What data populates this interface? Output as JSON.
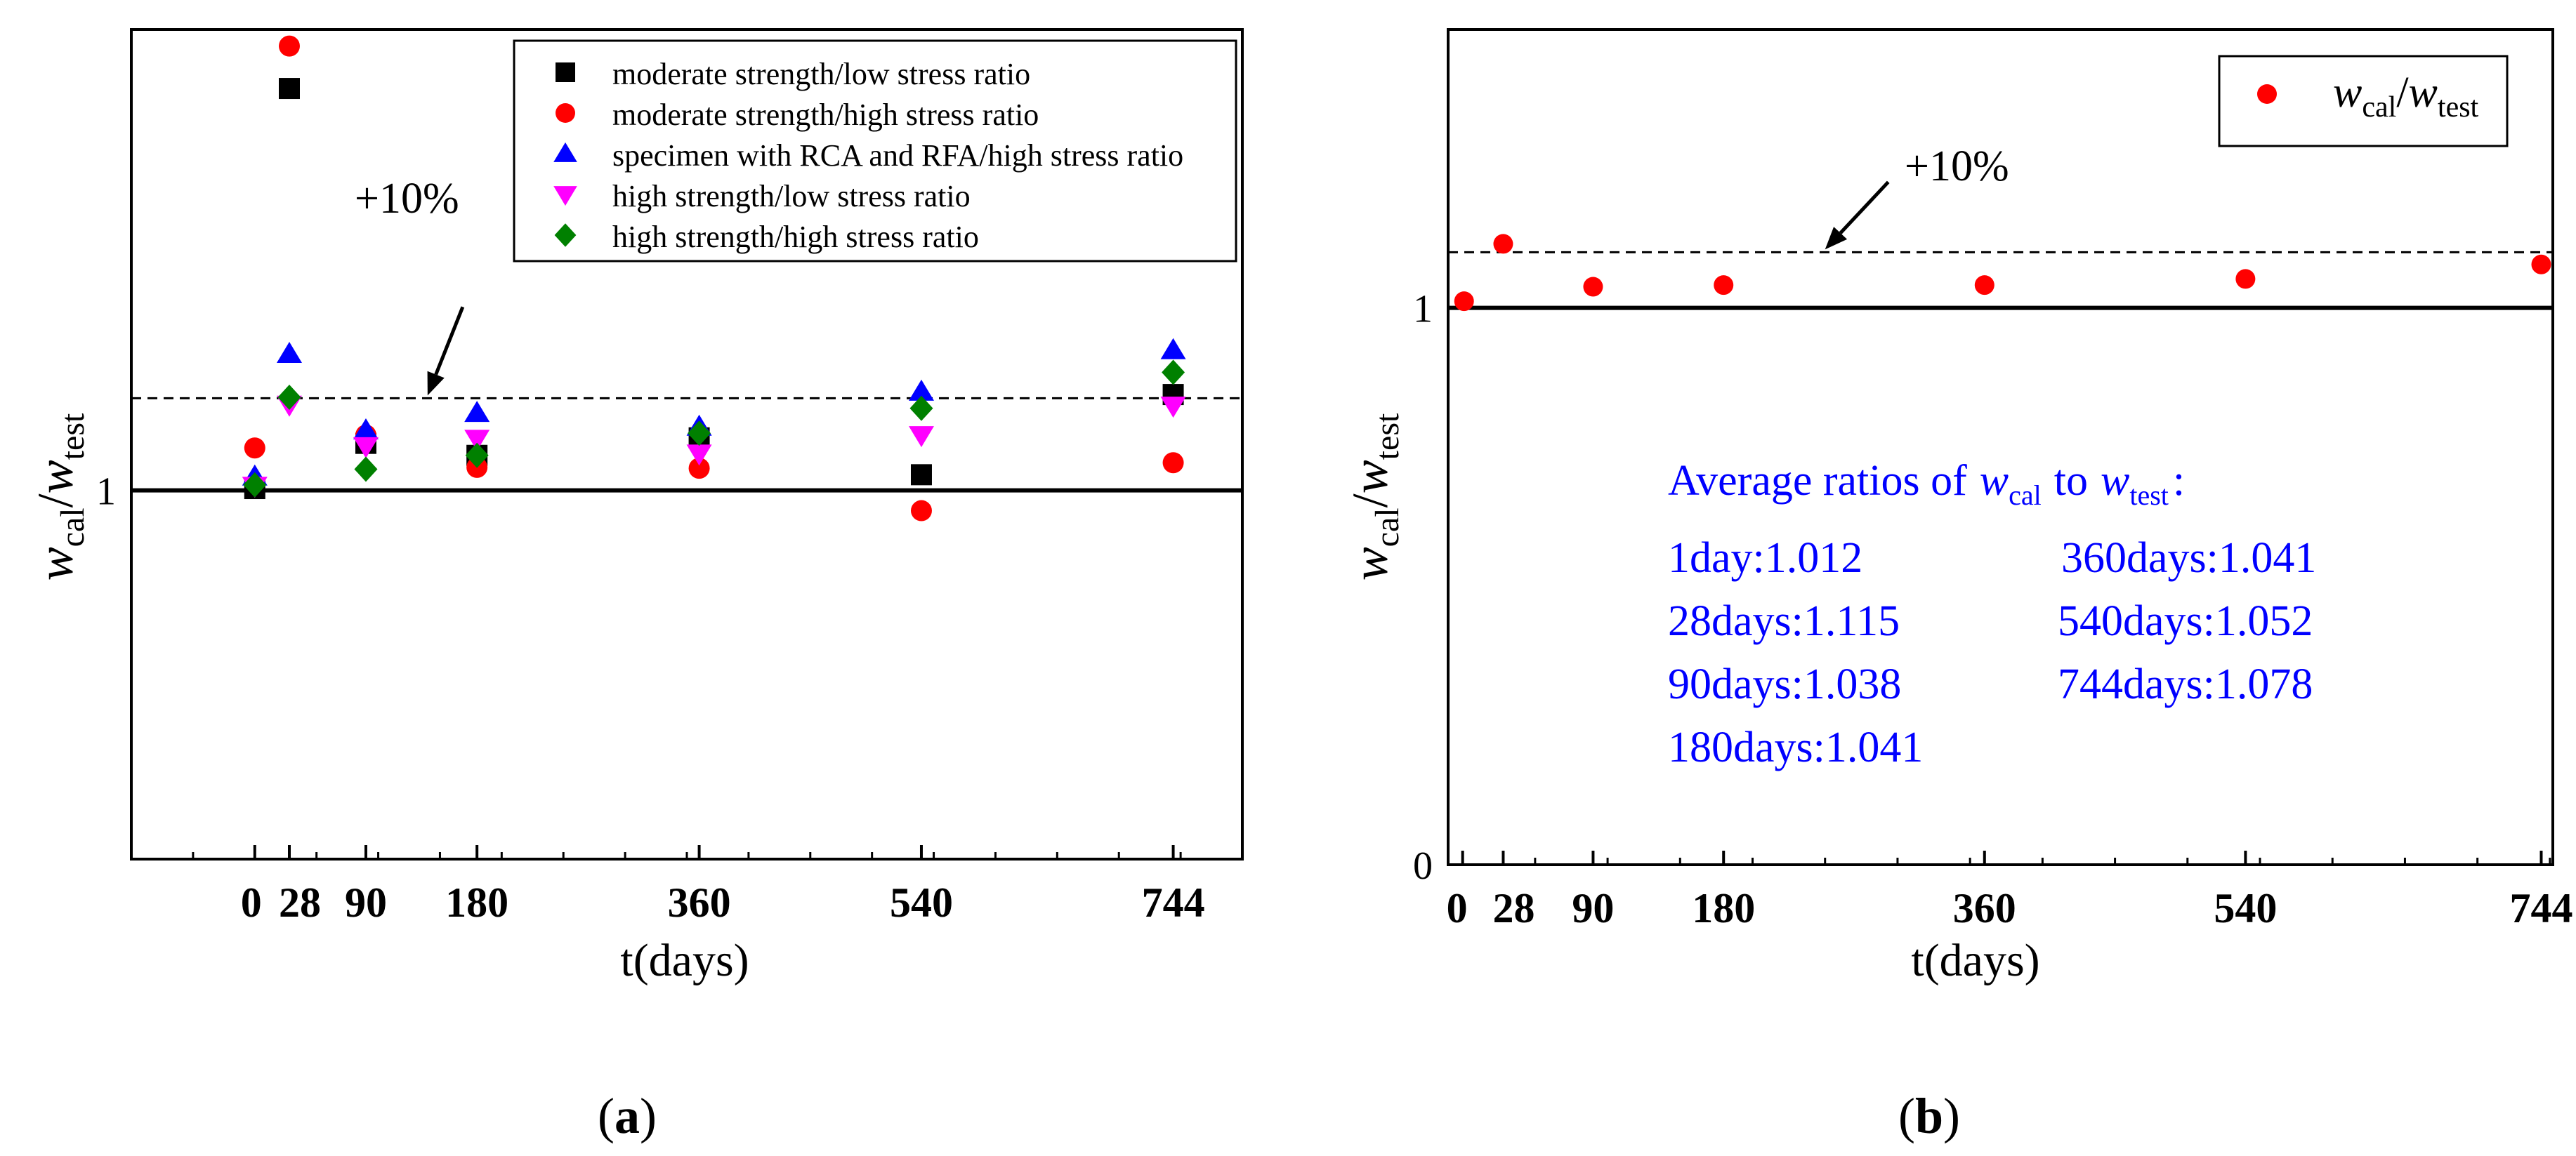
{
  "chart_data": [
    {
      "panel_label": "a",
      "type": "scatter",
      "xlabel": "t(days)",
      "ylabel": {
        "w1": "w",
        "s1": "cal",
        "slash": "/",
        "w2": "w",
        "s2": "test"
      },
      "x_ticks": [
        {
          "value": 0,
          "label": "0"
        },
        {
          "value": 28,
          "label": "28"
        },
        {
          "value": 90,
          "label": "90"
        },
        {
          "value": 180,
          "label": "180"
        },
        {
          "value": 360,
          "label": "360"
        },
        {
          "value": 540,
          "label": "540"
        },
        {
          "value": 744,
          "label": "744"
        }
      ],
      "y_ticks": [
        {
          "value": 1,
          "label": "1"
        }
      ],
      "xlim": [
        -100,
        800
      ],
      "ylim": [
        0.6,
        1.5
      ],
      "reference_lines": [
        {
          "y": 1.0,
          "style": "solid"
        },
        {
          "y": 1.1,
          "style": "dashed"
        }
      ],
      "annotation": {
        "text": "+10%",
        "points_to_x": 140,
        "points_to_y": 1.1
      },
      "legend_position": "top-right",
      "series": [
        {
          "name": "moderate strength/low stress ratio",
          "marker": "square",
          "color": "#000000",
          "x": [
            0,
            28,
            90,
            180,
            360,
            540,
            744
          ],
          "y": [
            1.002,
            1.436,
            1.051,
            1.038,
            1.057,
            1.017,
            1.104
          ]
        },
        {
          "name": "moderate strength/high stress ratio",
          "marker": "circle",
          "color": "#ff0000",
          "x": [
            0,
            28,
            90,
            180,
            360,
            540,
            744
          ],
          "y": [
            1.046,
            1.482,
            1.06,
            1.025,
            1.024,
            0.978,
            1.03
          ]
        },
        {
          "name": "specimen with RCA and RFA/high stress ratio",
          "marker": "triangle-up",
          "color": "#0000ff",
          "x": [
            0,
            28,
            90,
            180,
            360,
            540,
            744
          ],
          "y": [
            1.015,
            1.148,
            1.065,
            1.084,
            1.069,
            1.107,
            1.152
          ]
        },
        {
          "name": "high strength/low stress ratio",
          "marker": "triangle-down",
          "color": "#ff00ff",
          "x": [
            0,
            28,
            90,
            180,
            360,
            540,
            744
          ],
          "y": [
            1.005,
            1.093,
            1.048,
            1.056,
            1.04,
            1.06,
            1.092
          ]
        },
        {
          "name": "high strength/high stress ratio",
          "marker": "diamond",
          "color": "#008000",
          "x": [
            0,
            28,
            90,
            180,
            360,
            540,
            744
          ],
          "y": [
            1.006,
            1.101,
            1.023,
            1.038,
            1.062,
            1.089,
            1.128
          ]
        }
      ]
    },
    {
      "panel_label": "b",
      "type": "scatter",
      "xlabel": "t(days)",
      "ylabel": {
        "w1": "w",
        "s1": "cal",
        "slash": "/",
        "w2": "w",
        "s2": "test"
      },
      "x_ticks": [
        {
          "value": 0,
          "label": "0"
        },
        {
          "value": 28,
          "label": "28"
        },
        {
          "value": 90,
          "label": "90"
        },
        {
          "value": 180,
          "label": "180"
        },
        {
          "value": 360,
          "label": "360"
        },
        {
          "value": 540,
          "label": "540"
        },
        {
          "value": 744,
          "label": "744"
        }
      ],
      "y_ticks": [
        {
          "value": 0,
          "label": "0"
        },
        {
          "value": 1,
          "label": "1"
        }
      ],
      "xlim": [
        -10,
        752
      ],
      "ylim": [
        0,
        1.5
      ],
      "reference_lines": [
        {
          "y": 1.0,
          "style": "solid"
        },
        {
          "y": 1.1,
          "style": "dashed"
        }
      ],
      "annotation": {
        "text": "+10%",
        "points_to_x": 250,
        "points_to_y": 1.1
      },
      "legend_position": "top-right",
      "series": [
        {
          "name": {
            "w1": "w",
            "s1": "cal",
            "slash": "/",
            "w2": "w",
            "s2": "test"
          },
          "marker": "circle",
          "color": "#ff0000",
          "x": [
            1,
            28,
            90,
            180,
            360,
            540,
            744
          ],
          "y": [
            1.012,
            1.115,
            1.038,
            1.041,
            1.041,
            1.052,
            1.078
          ]
        }
      ],
      "average_box": {
        "title_prefix": "Average ratios of",
        "title_w1": "w",
        "title_s1": "cal",
        "title_mid": "to",
        "title_w2": "w",
        "title_s2": "test",
        "title_suffix": ":",
        "entries": [
          "1day:1.012",
          "28days:1.115",
          "90days:1.038",
          "180days:1.041",
          "360days:1.041",
          "540days:1.052",
          "744days:1.078"
        ]
      }
    }
  ],
  "colors": {
    "text_blue": "#0000ff",
    "axis": "#000000"
  }
}
